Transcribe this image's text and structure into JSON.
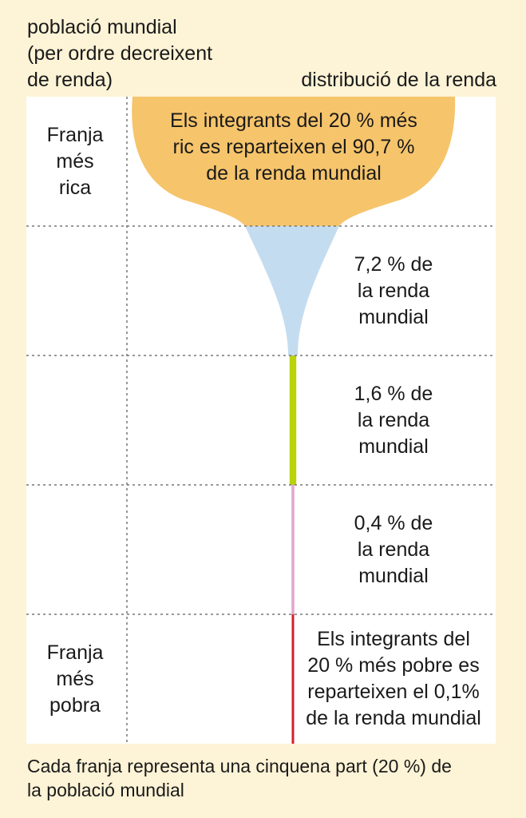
{
  "header": {
    "left_lines": [
      "població mundial",
      "(per ordre decreixent",
      "de renda)"
    ],
    "right": "distribució de la renda"
  },
  "chart_data": {
    "type": "funnel",
    "categories": [
      "Franja més rica",
      "",
      "",
      "",
      "Franja més pobra"
    ],
    "values": [
      90.7,
      7.2,
      1.6,
      0.4,
      0.1
    ],
    "unit": "% de la renda mundial",
    "colors": [
      "#f6c46b",
      "#c4dcef",
      "#b9d20a",
      "#e3a7cf",
      "#d4202a"
    ],
    "band_labels": [
      [
        "Franja",
        "més",
        "rica"
      ],
      [],
      [],
      [],
      [
        "Franja",
        "més",
        "pobra"
      ]
    ],
    "band_texts": [
      [
        "Els integrants del 20 % més",
        "ric es reparteixen el 90,7 %",
        "de la renda mundial"
      ],
      [
        "7,2 % de",
        "la renda",
        "mundial"
      ],
      [
        "1,6 % de",
        "la renda",
        "mundial"
      ],
      [
        "0,4 % de",
        "la renda",
        "mundial"
      ],
      [
        "Els integrants del",
        "20 % més pobre es",
        "reparteixen el 0,1%",
        "de la renda mundial"
      ]
    ]
  },
  "footer_lines": [
    "Cada franja representa una cinquena part (20 %) de",
    "la població mundial"
  ]
}
